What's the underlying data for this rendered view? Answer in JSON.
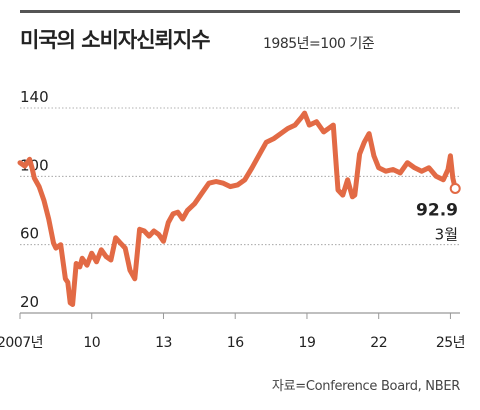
{
  "title": "미국의 소비자신뢰지수",
  "subtitle": "1985년=100 기준",
  "source": "자료=Conference Board, NBER",
  "colors": {
    "line": "#e26a45",
    "grid": "#999999",
    "text": "#222222"
  },
  "chart_data": {
    "type": "line",
    "title": "미국의 소비자신뢰지수",
    "ylim": [
      20,
      140
    ],
    "xlim": [
      2007,
      2025.4
    ],
    "y_ticks": [
      20,
      60,
      100,
      140
    ],
    "x_ticks": [
      {
        "value": 2007,
        "label": "2007년"
      },
      {
        "value": 2010,
        "label": "10"
      },
      {
        "value": 2013,
        "label": "13"
      },
      {
        "value": 2016,
        "label": "16"
      },
      {
        "value": 2019,
        "label": "19"
      },
      {
        "value": 2022,
        "label": "22"
      },
      {
        "value": 2025,
        "label": "25년"
      }
    ],
    "grid": true,
    "annotation": {
      "value": "92.9",
      "label": "3월",
      "x": 2025.2,
      "y": 92.9
    },
    "series": [
      {
        "x": [
          2007.0,
          2007.2,
          2007.4,
          2007.5,
          2007.6,
          2007.8,
          2008.0,
          2008.2,
          2008.4,
          2008.5,
          2008.7,
          2008.9,
          2009.0,
          2009.1,
          2009.2,
          2009.35,
          2009.5,
          2009.6,
          2009.8,
          2010.0,
          2010.2,
          2010.4,
          2010.6,
          2010.8,
          2011.0,
          2011.2,
          2011.4,
          2011.6,
          2011.8,
          2012.0,
          2012.2,
          2012.4,
          2012.6,
          2012.8,
          2013.0,
          2013.2,
          2013.4,
          2013.6,
          2013.8,
          2014.0,
          2014.3,
          2014.6,
          2014.9,
          2015.2,
          2015.5,
          2015.8,
          2016.1,
          2016.4,
          2016.7,
          2016.9,
          2017.1,
          2017.3,
          2017.6,
          2017.9,
          2018.2,
          2018.5,
          2018.8,
          2018.9,
          2019.1,
          2019.4,
          2019.7,
          2019.9,
          2020.1,
          2020.3,
          2020.5,
          2020.7,
          2020.9,
          2021.0,
          2021.2,
          2021.4,
          2021.6,
          2021.8,
          2022.0,
          2022.3,
          2022.6,
          2022.9,
          2023.2,
          2023.5,
          2023.8,
          2024.1,
          2024.4,
          2024.7,
          2024.9,
          2025.0,
          2025.1,
          2025.2
        ],
        "y": [
          108,
          106,
          110,
          105,
          99,
          94,
          86,
          75,
          61,
          58,
          60,
          40,
          38,
          26,
          25,
          49,
          47,
          52,
          48,
          55,
          50,
          57,
          53,
          51,
          64,
          61,
          58,
          45,
          40,
          69,
          68,
          65,
          68,
          66,
          62,
          73,
          78,
          79,
          75,
          80,
          84,
          90,
          96,
          97,
          96,
          94,
          95,
          98,
          105,
          110,
          115,
          120,
          122,
          125,
          128,
          130,
          135,
          137,
          130,
          132,
          126,
          128,
          130,
          92,
          89,
          98,
          88,
          89,
          113,
          120,
          125,
          112,
          105,
          103,
          104,
          102,
          108,
          105,
          103,
          105,
          100,
          98,
          104,
          112,
          99,
          92.9
        ]
      }
    ]
  }
}
